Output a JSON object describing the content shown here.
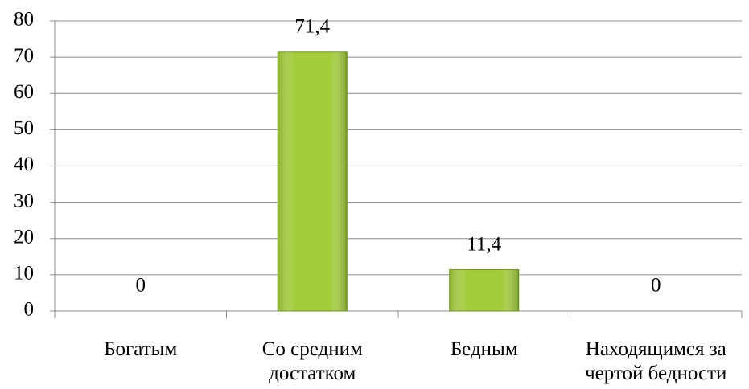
{
  "chart_data": {
    "type": "bar",
    "categories": [
      "Богатым",
      "Со средним\nдостатком",
      "Бедным",
      "Находящимся за\nчертой бедности"
    ],
    "values": [
      0,
      71.4,
      11.4,
      0
    ],
    "value_labels": [
      "0",
      "71,4",
      "11,4",
      "0"
    ],
    "color": "#a2cc3a",
    "ylim": [
      0,
      80
    ],
    "yticks": [
      0,
      10,
      20,
      30,
      40,
      50,
      60,
      70,
      80
    ],
    "grid": true
  }
}
